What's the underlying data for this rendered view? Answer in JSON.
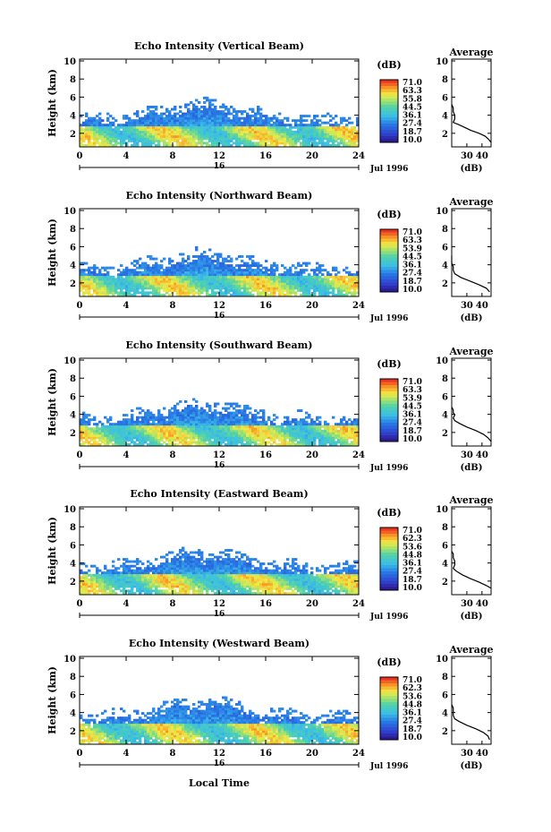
{
  "chart_data": [
    {
      "type": "heatmap",
      "title": "Echo Intensity (Vertical Beam)",
      "ylabel": "Height (km)",
      "ylim": [
        0.5,
        10.2
      ],
      "yticks": [
        2,
        4,
        6,
        8,
        10
      ],
      "xlim": [
        0,
        24
      ],
      "xticks": [
        0,
        4,
        8,
        12,
        16,
        20,
        24
      ],
      "date_marker": "16",
      "date_label": "Jul 1996",
      "colorbar": {
        "unit": "(dB)",
        "ticks": [
          "71.0",
          "63.3",
          "55.8",
          "44.5",
          "36.1",
          "27.4",
          "18.7",
          "10.0"
        ],
        "range": [
          10.0,
          71.0
        ]
      },
      "average": {
        "title": "Average",
        "xlabel": "(dB)",
        "xticks": [
          "30",
          "40"
        ],
        "xlim": [
          20,
          46
        ],
        "profile": [
          [
            46,
            1.0
          ],
          [
            44,
            1.4
          ],
          [
            42,
            1.7
          ],
          [
            38,
            2.0
          ],
          [
            33,
            2.3
          ],
          [
            28,
            2.7
          ],
          [
            24,
            3.0
          ],
          [
            21,
            3.2
          ],
          [
            22,
            3.6
          ],
          [
            22,
            4.0
          ],
          [
            21,
            4.4
          ],
          [
            21,
            4.8
          ],
          [
            20,
            5.2
          ]
        ]
      }
    },
    {
      "type": "heatmap",
      "title": "Echo Intensity (Northward Beam)",
      "ylabel": "Height (km)",
      "ylim": [
        0.5,
        10.2
      ],
      "yticks": [
        2,
        4,
        6,
        8,
        10
      ],
      "xlim": [
        0,
        24
      ],
      "xticks": [
        0,
        4,
        8,
        12,
        16,
        20,
        24
      ],
      "date_marker": "16",
      "date_label": "Jul 1996",
      "colorbar": {
        "unit": "(dB)",
        "ticks": [
          "71.0",
          "63.3",
          "53.9",
          "44.5",
          "36.1",
          "27.4",
          "18.7",
          "10.0"
        ],
        "range": [
          10.0,
          71.0
        ]
      },
      "average": {
        "title": "Average",
        "xlabel": "(dB)",
        "xticks": [
          "30",
          "40"
        ],
        "xlim": [
          20,
          46
        ],
        "profile": [
          [
            45,
            1.0
          ],
          [
            43,
            1.4
          ],
          [
            38,
            1.8
          ],
          [
            32,
            2.2
          ],
          [
            26,
            2.6
          ],
          [
            22,
            3.0
          ],
          [
            21,
            3.4
          ],
          [
            21,
            3.8
          ],
          [
            20,
            4.2
          ],
          [
            20,
            4.6
          ],
          [
            20,
            5.0
          ]
        ]
      }
    },
    {
      "type": "heatmap",
      "title": "Echo Intensity (Southward Beam)",
      "ylabel": "Height (km)",
      "ylim": [
        0.5,
        10.2
      ],
      "yticks": [
        2,
        4,
        6,
        8,
        10
      ],
      "xlim": [
        0,
        24
      ],
      "xticks": [
        0,
        4,
        8,
        12,
        16,
        20,
        24
      ],
      "date_marker": "16",
      "date_label": "Jul 1996",
      "colorbar": {
        "unit": "(dB)",
        "ticks": [
          "71.0",
          "63.3",
          "53.9",
          "44.5",
          "36.1",
          "27.4",
          "18.7",
          "10.0"
        ],
        "range": [
          10.0,
          71.0
        ]
      },
      "average": {
        "title": "Average",
        "xlabel": "(dB)",
        "xticks": [
          "30",
          "40"
        ],
        "xlim": [
          20,
          46
        ],
        "profile": [
          [
            46,
            1.0
          ],
          [
            44,
            1.4
          ],
          [
            41,
            1.8
          ],
          [
            36,
            2.2
          ],
          [
            30,
            2.6
          ],
          [
            25,
            3.0
          ],
          [
            22,
            3.3
          ],
          [
            21,
            3.6
          ],
          [
            22,
            3.9
          ],
          [
            21,
            4.2
          ],
          [
            21,
            4.5
          ],
          [
            20,
            4.8
          ]
        ]
      }
    },
    {
      "type": "heatmap",
      "title": "Echo Intensity (Eastward Beam)",
      "ylabel": "Height (km)",
      "ylim": [
        0.5,
        10.2
      ],
      "yticks": [
        2,
        4,
        6,
        8,
        10
      ],
      "xlim": [
        0,
        24
      ],
      "xticks": [
        0,
        4,
        8,
        12,
        16,
        20,
        24
      ],
      "date_marker": "16",
      "date_label": "Jul 1996",
      "colorbar": {
        "unit": "(dB)",
        "ticks": [
          "71.0",
          "62.3",
          "53.6",
          "44.8",
          "36.1",
          "27.4",
          "18.7",
          "10.0"
        ],
        "range": [
          10.0,
          71.0
        ]
      },
      "average": {
        "title": "Average",
        "xlabel": "(dB)",
        "xticks": [
          "30",
          "40"
        ],
        "xlim": [
          20,
          46
        ],
        "profile": [
          [
            46,
            1.2
          ],
          [
            43,
            1.5
          ],
          [
            38,
            1.9
          ],
          [
            32,
            2.3
          ],
          [
            27,
            2.7
          ],
          [
            23,
            3.1
          ],
          [
            21,
            3.4
          ],
          [
            22,
            3.8
          ],
          [
            22,
            4.2
          ],
          [
            21,
            4.6
          ],
          [
            21,
            5.0
          ],
          [
            20,
            5.3
          ]
        ]
      }
    },
    {
      "type": "heatmap",
      "title": "Echo Intensity (Westward Beam)",
      "ylabel": "Height (km)",
      "ylim": [
        0.5,
        10.2
      ],
      "yticks": [
        2,
        4,
        6,
        8,
        10
      ],
      "xlim": [
        0,
        24
      ],
      "xticks": [
        0,
        4,
        8,
        12,
        16,
        20,
        24
      ],
      "xlabel": "Local Time",
      "date_marker": "16",
      "date_label": "Jul 1996",
      "colorbar": {
        "unit": "(dB)",
        "ticks": [
          "71.0",
          "62.3",
          "53.6",
          "44.8",
          "36.1",
          "27.4",
          "18.7",
          "10.0"
        ],
        "range": [
          10.0,
          71.0
        ]
      },
      "average": {
        "title": "Average",
        "xlabel": "(dB)",
        "xticks": [
          "30",
          "40"
        ],
        "xlim": [
          20,
          46
        ],
        "profile": [
          [
            45,
            1.0
          ],
          [
            44,
            1.4
          ],
          [
            41,
            1.8
          ],
          [
            36,
            2.2
          ],
          [
            30,
            2.6
          ],
          [
            25,
            3.0
          ],
          [
            22,
            3.3
          ],
          [
            21,
            3.7
          ],
          [
            21,
            4.1
          ],
          [
            21,
            4.5
          ],
          [
            20,
            4.9
          ]
        ]
      }
    }
  ]
}
